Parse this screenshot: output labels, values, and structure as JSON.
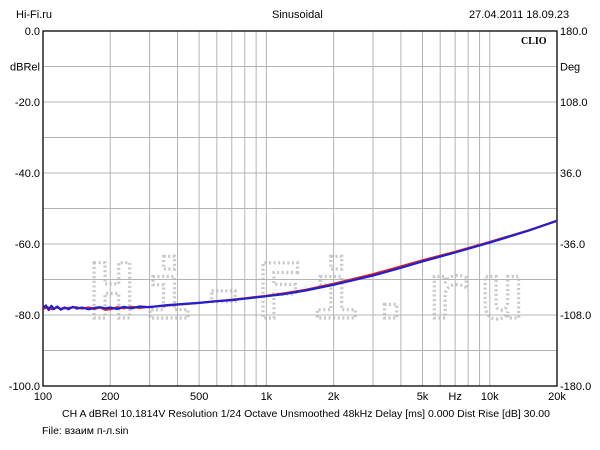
{
  "header": {
    "site": "Hi-Fi.ru",
    "title": "Sinusoidal",
    "datetime": "27.04.2011 18.09.23"
  },
  "brand": "CLIO",
  "watermark": "Hi-Fi.ru",
  "footer": {
    "line1": "CH A   dBRel 10.1814V   Resolution 1/24 Octave   Unsmoothed   48kHz   Delay [ms] 0.000   Dist Rise [dB] 30.00",
    "line2": "File: взаим п-л.sin"
  },
  "chart_data": {
    "type": "line",
    "x_scale": "log",
    "xlim": [
      100,
      20000
    ],
    "xticks": [
      {
        "v": 100,
        "label": "100"
      },
      {
        "v": 200,
        "label": "200"
      },
      {
        "v": 500,
        "label": "500"
      },
      {
        "v": 1000,
        "label": "1k"
      },
      {
        "v": 2000,
        "label": "2k"
      },
      {
        "v": 5000,
        "label": "5k"
      },
      {
        "v": 7000,
        "label": "Hz"
      },
      {
        "v": 10000,
        "label": "10k"
      },
      {
        "v": 20000,
        "label": "20k"
      }
    ],
    "ylabel_left": "dBRel",
    "ylim_left": [
      -100,
      0
    ],
    "yticks_left": [
      {
        "v": 0,
        "label": "0.0"
      },
      {
        "v": -20,
        "label": "-20.0"
      },
      {
        "v": -40,
        "label": "-40.0"
      },
      {
        "v": -60,
        "label": "-60.0"
      },
      {
        "v": -80,
        "label": "-80.0"
      },
      {
        "v": -100,
        "label": "-100.0"
      }
    ],
    "ylabel_right": "Deg",
    "ylim_right": [
      -180,
      180
    ],
    "yticks_right": [
      {
        "v": 180,
        "label": "180.0"
      },
      {
        "v": 108,
        "label": "108.0"
      },
      {
        "v": 36,
        "label": "36.0"
      },
      {
        "v": -36,
        "label": "-36.0"
      },
      {
        "v": -108,
        "label": "-108.0"
      },
      {
        "v": -180,
        "label": "-180.0"
      }
    ],
    "grid": true,
    "series": [
      {
        "color": "#e02020",
        "points": [
          [
            100,
            -78.3
          ],
          [
            105,
            -77.8
          ],
          [
            110,
            -78.4
          ],
          [
            115,
            -77.9
          ],
          [
            120,
            -78.2
          ],
          [
            130,
            -78.0
          ],
          [
            140,
            -77.8
          ],
          [
            150,
            -78.2
          ],
          [
            160,
            -77.9
          ],
          [
            170,
            -78.3
          ],
          [
            180,
            -77.9
          ],
          [
            190,
            -78.5
          ],
          [
            200,
            -78.4
          ],
          [
            215,
            -77.8
          ],
          [
            230,
            -78.1
          ],
          [
            250,
            -77.7
          ],
          [
            270,
            -78.0
          ],
          [
            300,
            -77.7
          ],
          [
            350,
            -77.4
          ],
          [
            400,
            -77.1
          ],
          [
            500,
            -76.6
          ],
          [
            600,
            -76.1
          ],
          [
            700,
            -75.7
          ],
          [
            800,
            -75.3
          ],
          [
            1000,
            -74.6
          ],
          [
            1200,
            -73.9
          ],
          [
            1500,
            -72.9
          ],
          [
            2000,
            -71.2
          ],
          [
            3000,
            -68.5
          ],
          [
            4000,
            -66.3
          ],
          [
            5000,
            -64.6
          ],
          [
            7000,
            -62.2
          ],
          [
            10000,
            -59.4
          ],
          [
            15000,
            -56.1
          ],
          [
            20000,
            -53.5
          ]
        ]
      },
      {
        "color": "#2020d0",
        "points": [
          [
            100,
            -78.0
          ],
          [
            103,
            -77.3
          ],
          [
            106,
            -78.6
          ],
          [
            109,
            -77.4
          ],
          [
            112,
            -78.3
          ],
          [
            116,
            -77.6
          ],
          [
            120,
            -78.5
          ],
          [
            125,
            -77.9
          ],
          [
            130,
            -78.4
          ],
          [
            136,
            -77.7
          ],
          [
            142,
            -78.2
          ],
          [
            150,
            -77.9
          ],
          [
            160,
            -78.4
          ],
          [
            170,
            -78.0
          ],
          [
            180,
            -77.8
          ],
          [
            190,
            -78.1
          ],
          [
            200,
            -77.9
          ],
          [
            215,
            -78.3
          ],
          [
            230,
            -77.7
          ],
          [
            250,
            -78.1
          ],
          [
            270,
            -77.6
          ],
          [
            300,
            -77.8
          ],
          [
            350,
            -77.3
          ],
          [
            400,
            -77.0
          ],
          [
            500,
            -76.6
          ],
          [
            600,
            -76.1
          ],
          [
            700,
            -75.8
          ],
          [
            800,
            -75.4
          ],
          [
            1000,
            -74.7
          ],
          [
            1200,
            -74.1
          ],
          [
            1500,
            -73.1
          ],
          [
            2000,
            -71.5
          ],
          [
            3000,
            -68.9
          ],
          [
            4000,
            -66.7
          ],
          [
            5000,
            -64.9
          ],
          [
            7000,
            -62.4
          ],
          [
            10000,
            -59.6
          ],
          [
            15000,
            -56.2
          ],
          [
            20000,
            -53.4
          ]
        ]
      }
    ]
  }
}
